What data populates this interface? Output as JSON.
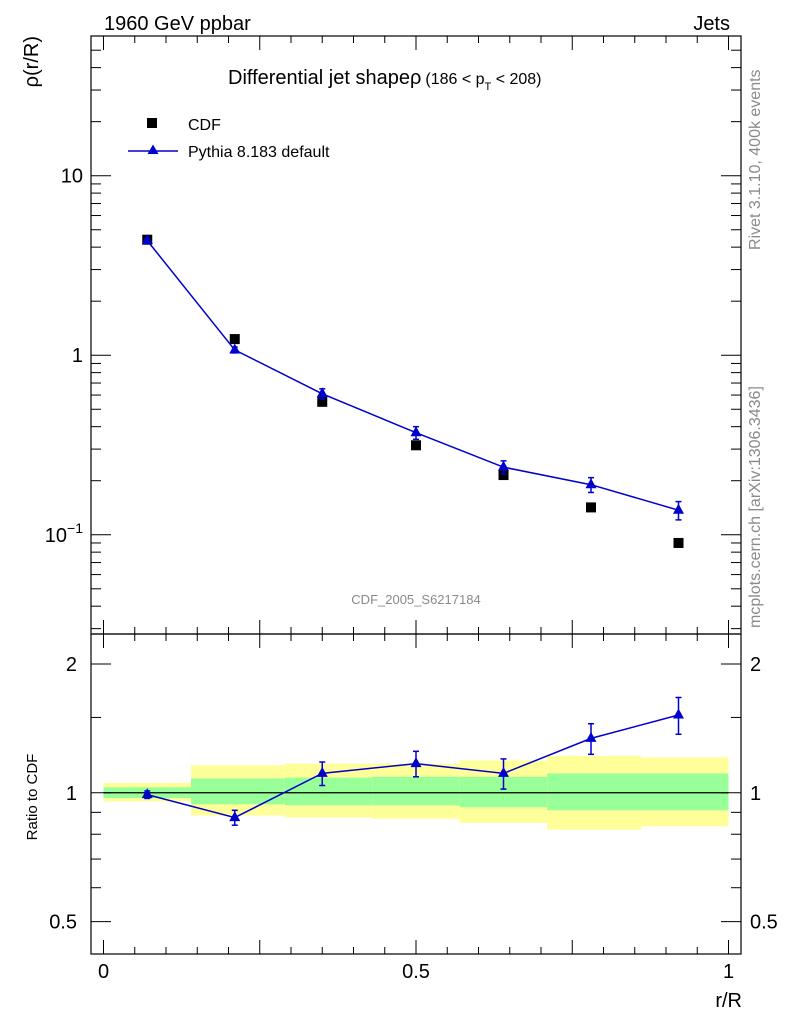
{
  "header": {
    "energy_label": "1960 GeV ppbar",
    "category_label": "Jets"
  },
  "side_labels": {
    "rivet": "Rivet 3.1.10,  400k events",
    "source": "mcplots.cern.ch [arXiv:1306.3436]"
  },
  "watermark": "CDF_2005_S6217184",
  "chart_data": [
    {
      "type": "scatter",
      "panel": "main",
      "title_main": "Differential jet shape",
      "title_rho": "ρ",
      "title_range_a": "(186 < p",
      "title_range_sub": "T",
      "title_range_b": " < 208)",
      "ylabel": "ρ(r/R)",
      "xlabel": "r/R",
      "yscale": "log",
      "ylim": [
        0.028,
        60
      ],
      "xlim": [
        -0.02,
        1.02
      ],
      "y_ticks": [
        {
          "value": 10,
          "label": "10"
        },
        {
          "value": 1,
          "label": "1"
        },
        {
          "value": 0.1,
          "label_base": "10",
          "label_exp": "−1"
        }
      ],
      "legend_position": "top-left",
      "series": [
        {
          "name": "CDF",
          "marker": "square",
          "color": "#000000",
          "x": [
            0.07,
            0.21,
            0.35,
            0.5,
            0.64,
            0.78,
            0.92
          ],
          "y": [
            4.4,
            1.23,
            0.55,
            0.315,
            0.215,
            0.142,
            0.09
          ]
        },
        {
          "name": "Pythia 8.183 default",
          "marker": "triangle",
          "color": "#0000cc",
          "x": [
            0.07,
            0.21,
            0.35,
            0.5,
            0.64,
            0.78,
            0.92
          ],
          "y": [
            4.35,
            1.07,
            0.61,
            0.37,
            0.238,
            0.19,
            0.137
          ],
          "err_lo": [
            0.1,
            0.04,
            0.04,
            0.03,
            0.02,
            0.018,
            0.016
          ],
          "err_hi": [
            0.1,
            0.04,
            0.04,
            0.03,
            0.02,
            0.018,
            0.016
          ]
        }
      ]
    },
    {
      "type": "scatter",
      "panel": "ratio",
      "ylabel": "Ratio to CDF",
      "xlabel": "r/R",
      "yscale": "log",
      "ylim": [
        0.42,
        2.35
      ],
      "xlim": [
        -0.02,
        1.02
      ],
      "y_ticks": [
        {
          "value": 2,
          "label": "2"
        },
        {
          "value": 1,
          "label": "1"
        },
        {
          "value": 0.5,
          "label": "0.5"
        }
      ],
      "x_ticks": [
        {
          "value": 0,
          "label": "0"
        },
        {
          "value": 0.5,
          "label": "0.5"
        },
        {
          "value": 1,
          "label": "1"
        }
      ],
      "reference_line": 1,
      "bands": [
        {
          "x0": 0.0,
          "x1": 0.14,
          "y_lo_outer": 0.955,
          "y_hi_outer": 1.055,
          "y_lo_inner": 0.972,
          "y_hi_inner": 1.03
        },
        {
          "x0": 0.14,
          "x1": 0.29,
          "y_lo_outer": 0.885,
          "y_hi_outer": 1.16,
          "y_lo_inner": 0.94,
          "y_hi_inner": 1.08
        },
        {
          "x0": 0.29,
          "x1": 0.43,
          "y_lo_outer": 0.875,
          "y_hi_outer": 1.17,
          "y_lo_inner": 0.935,
          "y_hi_inner": 1.085
        },
        {
          "x0": 0.43,
          "x1": 0.57,
          "y_lo_outer": 0.87,
          "y_hi_outer": 1.17,
          "y_lo_inner": 0.935,
          "y_hi_inner": 1.09
        },
        {
          "x0": 0.57,
          "x1": 0.71,
          "y_lo_outer": 0.85,
          "y_hi_outer": 1.19,
          "y_lo_inner": 0.925,
          "y_hi_inner": 1.09
        },
        {
          "x0": 0.71,
          "x1": 0.86,
          "y_lo_outer": 0.82,
          "y_hi_outer": 1.22,
          "y_lo_inner": 0.91,
          "y_hi_inner": 1.11
        },
        {
          "x0": 0.86,
          "x1": 1.0,
          "y_lo_outer": 0.835,
          "y_hi_outer": 1.21,
          "y_lo_inner": 0.91,
          "y_hi_inner": 1.11
        }
      ],
      "series": [
        {
          "name": "Pythia 8.183 default / CDF",
          "marker": "triangle",
          "color": "#0000cc",
          "x": [
            0.07,
            0.21,
            0.35,
            0.5,
            0.64,
            0.78,
            0.92
          ],
          "y": [
            0.99,
            0.875,
            1.11,
            1.17,
            1.11,
            1.34,
            1.52
          ],
          "err_lo": [
            0.02,
            0.035,
            0.07,
            0.08,
            0.09,
            0.11,
            0.15
          ],
          "err_hi": [
            0.02,
            0.035,
            0.07,
            0.08,
            0.09,
            0.11,
            0.15
          ]
        }
      ]
    }
  ],
  "colors": {
    "band_outer": "#ffff99",
    "band_inner": "#99ff99",
    "pythia": "#0000cc",
    "cdf": "#000000"
  }
}
